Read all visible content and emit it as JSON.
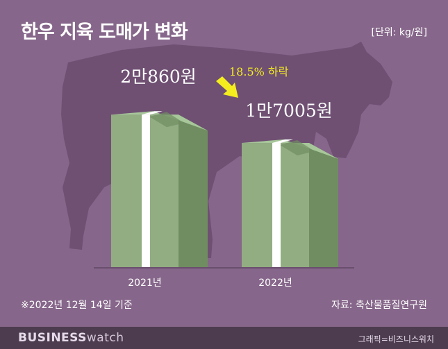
{
  "header": {
    "title": "한우 지육 도매가 변화",
    "unit": "[단위: kg/원]"
  },
  "footnote": "※2022년 12월 14일 기준",
  "source": "자료: 축산물품질연구원",
  "footer": {
    "brand_bold": "BUSINESS",
    "brand_light": "watch",
    "credit": "그래픽=비즈니스워치"
  },
  "change": {
    "label": "18.5% 하락",
    "percent": -18.5
  },
  "colors": {
    "background": "#86668a",
    "silhouette": "#6f5073",
    "stack_front": "#93ad82",
    "stack_side": "#6f8d61",
    "stack_top": "#a7c79a",
    "band": "#ffffff",
    "arrow": "#f5ee1f",
    "annotation": "#f5ee1f"
  },
  "decor": {
    "background_image": "cow-silhouette-icon",
    "bar_image": "banknote-stack-icon"
  },
  "chart_data": {
    "type": "bar",
    "categories": [
      "2021년",
      "2022년"
    ],
    "values": [
      20860,
      17005
    ],
    "value_labels": [
      "2만860원",
      "1만7005원"
    ],
    "ylim": [
      0,
      24000
    ],
    "grid": false,
    "legend": "none"
  }
}
